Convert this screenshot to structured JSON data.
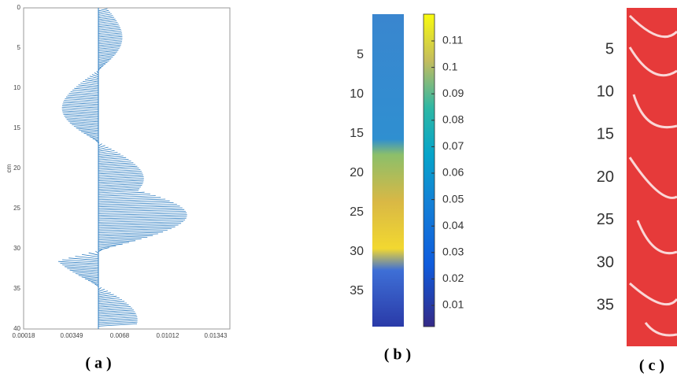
{
  "panels": [
    {
      "caption": "( a )",
      "y_label": "cm",
      "y_ticks": [
        "0",
        "5",
        "10",
        "15",
        "20",
        "25",
        "30",
        "35",
        "40"
      ],
      "x_ticks": [
        "0.00018",
        "0.00349",
        "0.0068",
        "0.01012",
        "0.01343"
      ]
    },
    {
      "caption": "( b )",
      "y_ticks": [
        "5",
        "10",
        "15",
        "20",
        "25",
        "30",
        "35"
      ],
      "colorbar_ticks": [
        "0.11",
        "0.1",
        "0.09",
        "0.08",
        "0.07",
        "0.06",
        "0.05",
        "0.04",
        "0.03",
        "0.02",
        "0.01"
      ]
    },
    {
      "caption": "( c )",
      "y_ticks": [
        "5",
        "10",
        "15",
        "20",
        "25",
        "30",
        "35"
      ]
    }
  ]
}
